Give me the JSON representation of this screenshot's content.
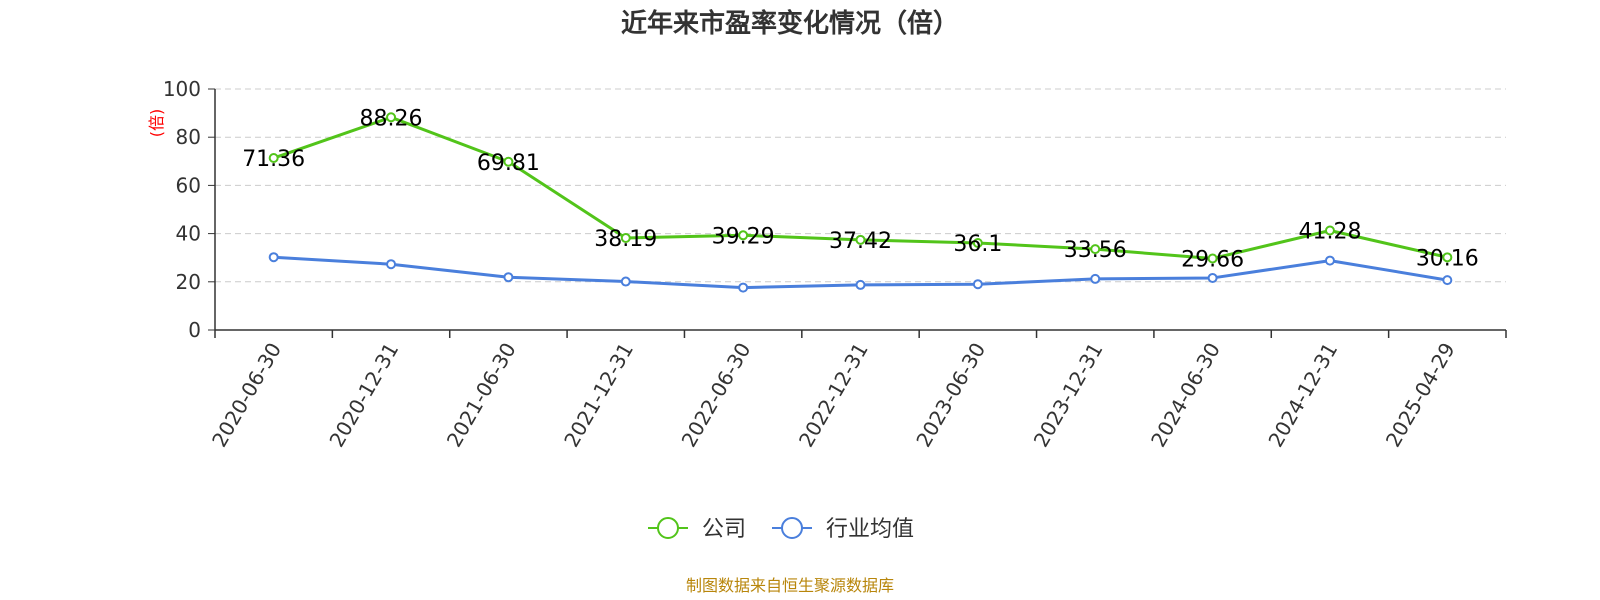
{
  "chart_data": {
    "type": "line",
    "title": "近年来市盈率变化情况（倍）",
    "ylabel": "(倍)",
    "xlabel": "",
    "categories": [
      "2020-06-30",
      "2020-12-31",
      "2021-06-30",
      "2021-12-31",
      "2022-06-30",
      "2022-12-31",
      "2023-06-30",
      "2023-12-31",
      "2024-06-30",
      "2024-12-31",
      "2025-04-29"
    ],
    "ylim": [
      0,
      100
    ],
    "yticks": [
      0,
      20,
      40,
      60,
      80,
      100
    ],
    "grid": true,
    "legend_position": "bottom",
    "series": [
      {
        "name": "公司",
        "color": "#52c41a",
        "show_labels": true,
        "values": [
          71.36,
          88.26,
          69.81,
          38.19,
          39.29,
          37.42,
          36.1,
          33.56,
          29.66,
          41.28,
          30.16
        ]
      },
      {
        "name": "行业均值",
        "color": "#4a7fdc",
        "show_labels": false,
        "values": [
          30.2,
          27.3,
          21.9,
          20.1,
          17.6,
          18.7,
          19.0,
          21.2,
          21.6,
          28.8,
          20.7
        ]
      }
    ]
  },
  "source_text": "制图数据来自恒生聚源数据库"
}
